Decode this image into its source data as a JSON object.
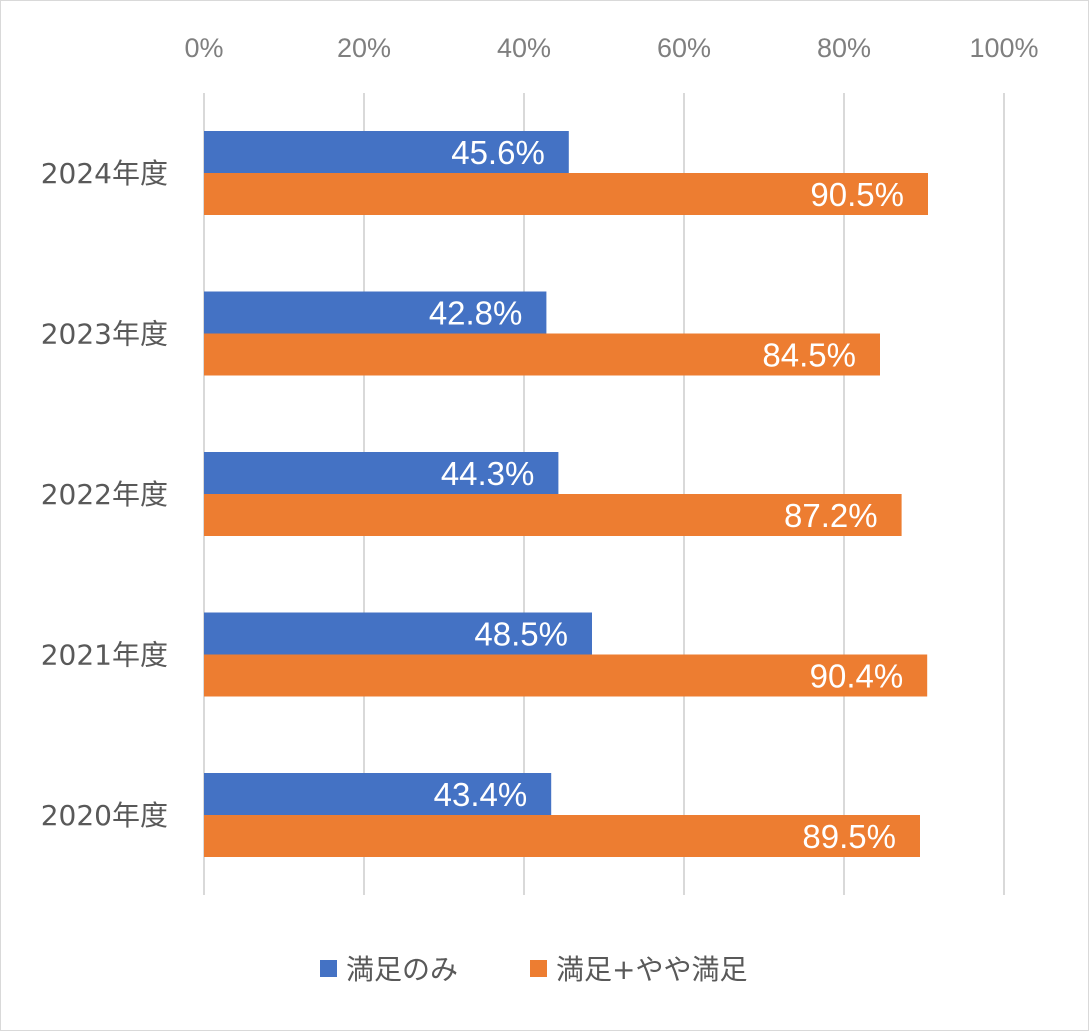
{
  "chart_data": {
    "type": "bar",
    "orientation": "horizontal",
    "categories": [
      "2024年度",
      "2023年度",
      "2022年度",
      "2021年度",
      "2020年度"
    ],
    "series": [
      {
        "name": "満足のみ",
        "color": "#4472c4",
        "values": [
          45.6,
          42.8,
          44.3,
          48.5,
          43.4
        ],
        "labels": [
          "45.6%",
          "42.8%",
          "44.3%",
          "48.5%",
          "43.4%"
        ]
      },
      {
        "name": "満足+やや満足",
        "color": "#ed7d31",
        "values": [
          90.5,
          84.5,
          87.2,
          90.4,
          89.5
        ],
        "labels": [
          "90.5%",
          "84.5%",
          "87.2%",
          "90.4%",
          "89.5%"
        ]
      }
    ],
    "x_ticks": [
      "0%",
      "20%",
      "40%",
      "60%",
      "80%",
      "100%"
    ],
    "xlim": [
      0,
      100
    ],
    "grid": true,
    "legend_position": "bottom"
  }
}
